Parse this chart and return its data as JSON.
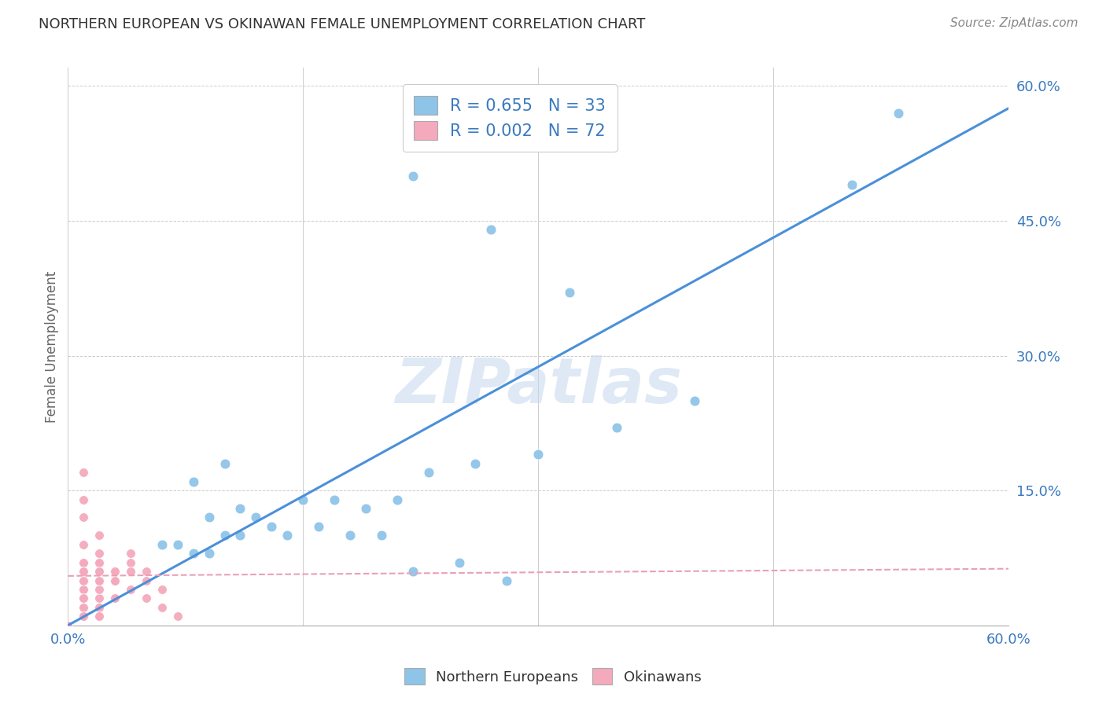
{
  "title": "NORTHERN EUROPEAN VS OKINAWAN FEMALE UNEMPLOYMENT CORRELATION CHART",
  "source": "Source: ZipAtlas.com",
  "ylabel": "Female Unemployment",
  "right_yticks": [
    "60.0%",
    "45.0%",
    "30.0%",
    "15.0%"
  ],
  "right_ytick_vals": [
    0.6,
    0.45,
    0.3,
    0.15
  ],
  "legend_label_blue": "Northern Europeans",
  "legend_label_pink": "Okinawans",
  "watermark": "ZIPatlas",
  "blue_color": "#8ec4e8",
  "pink_color": "#f4aabc",
  "trend_blue_color": "#4a90d9",
  "trend_pink_color": "#e8a0b8",
  "xlim": [
    0.0,
    0.6
  ],
  "ylim": [
    0.0,
    0.62
  ],
  "blue_scatter_x": [
    0.22,
    0.5,
    0.08,
    0.1,
    0.11,
    0.12,
    0.09,
    0.1,
    0.13,
    0.15,
    0.17,
    0.19,
    0.21,
    0.23,
    0.26,
    0.3,
    0.35,
    0.4,
    0.06,
    0.07,
    0.08,
    0.09,
    0.11,
    0.14,
    0.16,
    0.18,
    0.2,
    0.22,
    0.25,
    0.28,
    0.32,
    0.27,
    0.53
  ],
  "blue_scatter_y": [
    0.5,
    0.49,
    0.16,
    0.18,
    0.13,
    0.12,
    0.12,
    0.1,
    0.11,
    0.14,
    0.14,
    0.13,
    0.14,
    0.17,
    0.18,
    0.19,
    0.22,
    0.25,
    0.09,
    0.09,
    0.08,
    0.08,
    0.1,
    0.1,
    0.11,
    0.1,
    0.1,
    0.06,
    0.07,
    0.05,
    0.37,
    0.44,
    0.57
  ],
  "pink_scatter_x": [
    0.01,
    0.01,
    0.01,
    0.02,
    0.01,
    0.02,
    0.02,
    0.03,
    0.01,
    0.01,
    0.02,
    0.01,
    0.02,
    0.02,
    0.01,
    0.01,
    0.01,
    0.03,
    0.01,
    0.01,
    0.02,
    0.02,
    0.01,
    0.03,
    0.02,
    0.01,
    0.01,
    0.01,
    0.02,
    0.01,
    0.01,
    0.02,
    0.03,
    0.01,
    0.01,
    0.02,
    0.02,
    0.01,
    0.01,
    0.01,
    0.02,
    0.02,
    0.01,
    0.04,
    0.04,
    0.05,
    0.03,
    0.04,
    0.05,
    0.06,
    0.07,
    0.04,
    0.05,
    0.06,
    0.03,
    0.02,
    0.01,
    0.01,
    0.02,
    0.01,
    0.01,
    0.01,
    0.02,
    0.02,
    0.01,
    0.01,
    0.01,
    0.01,
    0.01,
    0.01,
    0.01,
    0.0
  ],
  "pink_scatter_y": [
    0.17,
    0.14,
    0.12,
    0.1,
    0.09,
    0.08,
    0.07,
    0.06,
    0.05,
    0.04,
    0.03,
    0.02,
    0.01,
    0.07,
    0.06,
    0.05,
    0.04,
    0.05,
    0.03,
    0.02,
    0.02,
    0.01,
    0.07,
    0.06,
    0.05,
    0.04,
    0.03,
    0.02,
    0.01,
    0.06,
    0.05,
    0.04,
    0.03,
    0.02,
    0.01,
    0.07,
    0.06,
    0.05,
    0.04,
    0.03,
    0.02,
    0.01,
    0.07,
    0.08,
    0.07,
    0.06,
    0.05,
    0.04,
    0.03,
    0.02,
    0.01,
    0.06,
    0.05,
    0.04,
    0.03,
    0.02,
    0.01,
    0.06,
    0.05,
    0.04,
    0.03,
    0.02,
    0.01,
    0.06,
    0.05,
    0.04,
    0.03,
    0.02,
    0.01,
    0.06,
    0.05,
    0.0
  ],
  "blue_trend_x0": 0.0,
  "blue_trend_y0": 0.0,
  "blue_trend_x1": 0.6,
  "blue_trend_y1": 0.575,
  "pink_trend_x0": 0.0,
  "pink_trend_y0": 0.055,
  "pink_trend_x1": 0.6,
  "pink_trend_y1": 0.063
}
